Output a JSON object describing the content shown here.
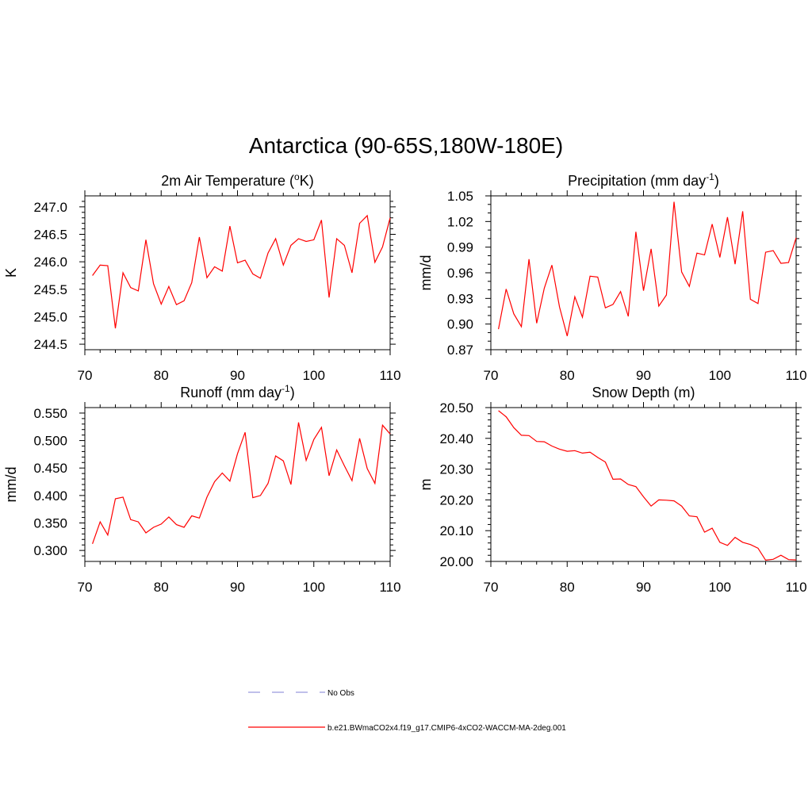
{
  "main_title": "Antarctica (90-65S,180W-180E)",
  "colors": {
    "series": "#ff0000",
    "obs": "#9999dd",
    "axis": "#000000"
  },
  "legend": [
    {
      "label": "No Obs",
      "style": "dashed"
    },
    {
      "label": "b.e21.BWmaCO2x4.f19_g17.CMIP6-4xCO2-WACCM-MA-2deg.001",
      "style": "solid"
    }
  ],
  "chart_data": [
    {
      "type": "line",
      "title_main": "2m Air Temperature (",
      "title_sup": "o",
      "title_end": "K)",
      "ylabel": "K",
      "xlim": [
        70,
        110
      ],
      "ylim": [
        244.4,
        247.2
      ],
      "xticks": [
        70,
        80,
        90,
        100,
        110
      ],
      "xtick_labels": [
        "70",
        "80",
        "90",
        "100",
        "110"
      ],
      "yticks": [
        244.5,
        245.0,
        245.5,
        246.0,
        246.5,
        247.0
      ],
      "ytick_labels": [
        "244.5",
        "245.0",
        "245.5",
        "246.0",
        "246.5",
        "247.0"
      ],
      "yminor": [
        244.6,
        244.7,
        244.8,
        244.9,
        245.1,
        245.2,
        245.3,
        245.4,
        245.6,
        245.7,
        245.8,
        245.9,
        246.1,
        246.2,
        246.3,
        246.4,
        246.6,
        246.7,
        246.8,
        246.9,
        247.1
      ],
      "x": [
        71,
        72,
        73,
        74,
        75,
        76,
        77,
        78,
        79,
        80,
        81,
        82,
        83,
        84,
        85,
        86,
        87,
        88,
        89,
        90,
        91,
        92,
        93,
        94,
        95,
        96,
        97,
        98,
        99,
        100,
        101,
        102,
        103,
        104,
        105,
        106,
        107,
        108,
        109,
        110
      ],
      "values": [
        245.75,
        245.94,
        245.93,
        244.79,
        245.8,
        245.53,
        245.47,
        246.4,
        245.6,
        245.23,
        245.55,
        245.22,
        245.29,
        245.62,
        246.45,
        245.71,
        245.91,
        245.83,
        246.65,
        245.98,
        246.03,
        245.78,
        245.7,
        246.16,
        246.42,
        245.94,
        246.3,
        246.42,
        246.37,
        246.4,
        246.76,
        245.35,
        246.42,
        246.3,
        245.8,
        246.7,
        246.84,
        245.99,
        246.27,
        246.8
      ]
    },
    {
      "type": "line",
      "title_main": "Precipitation (mm day",
      "title_sup": "-1",
      "title_end": ")",
      "ylabel": "mm/d",
      "xlim": [
        70,
        110
      ],
      "ylim": [
        0.87,
        1.05
      ],
      "xticks": [
        70,
        80,
        90,
        100,
        110
      ],
      "xtick_labels": [
        "70",
        "80",
        "90",
        "100",
        "110"
      ],
      "yticks": [
        0.87,
        0.9,
        0.93,
        0.96,
        0.99,
        1.02,
        1.05
      ],
      "ytick_labels": [
        "0.87",
        "0.90",
        "0.93",
        "0.96",
        "0.99",
        "1.02",
        "1.05"
      ],
      "yminor": [
        0.88,
        0.89,
        0.91,
        0.92,
        0.94,
        0.95,
        0.97,
        0.98,
        1.0,
        1.01,
        1.03,
        1.04
      ],
      "x": [
        71,
        72,
        73,
        74,
        75,
        76,
        77,
        78,
        79,
        80,
        81,
        82,
        83,
        84,
        85,
        86,
        87,
        88,
        89,
        90,
        91,
        92,
        93,
        94,
        95,
        96,
        97,
        98,
        99,
        100,
        101,
        102,
        103,
        104,
        105,
        106,
        107,
        108,
        109,
        110
      ],
      "values": [
        0.894,
        0.941,
        0.912,
        0.897,
        0.976,
        0.901,
        0.942,
        0.969,
        0.92,
        0.886,
        0.932,
        0.908,
        0.956,
        0.955,
        0.919,
        0.923,
        0.938,
        0.909,
        1.008,
        0.939,
        0.988,
        0.921,
        0.934,
        1.043,
        0.961,
        0.944,
        0.983,
        0.981,
        1.017,
        0.978,
        1.025,
        0.97,
        1.032,
        0.929,
        0.924,
        0.984,
        0.986,
        0.971,
        0.972,
        1.001
      ]
    },
    {
      "type": "line",
      "title_main": "Runoff (mm day",
      "title_sup": "-1",
      "title_end": ")",
      "ylabel": "mm/d",
      "xlim": [
        70,
        110
      ],
      "ylim": [
        0.28,
        0.56
      ],
      "xticks": [
        70,
        80,
        90,
        100,
        110
      ],
      "xtick_labels": [
        "70",
        "80",
        "90",
        "100",
        "110"
      ],
      "yticks": [
        0.3,
        0.35,
        0.4,
        0.45,
        0.5,
        0.55
      ],
      "ytick_labels": [
        "0.300",
        "0.350",
        "0.400",
        "0.450",
        "0.500",
        "0.550"
      ],
      "yminor": [
        0.29,
        0.31,
        0.32,
        0.33,
        0.34,
        0.36,
        0.37,
        0.38,
        0.39,
        0.41,
        0.42,
        0.43,
        0.44,
        0.46,
        0.47,
        0.48,
        0.49,
        0.51,
        0.52,
        0.53,
        0.54
      ],
      "x": [
        71,
        72,
        73,
        74,
        75,
        76,
        77,
        78,
        79,
        80,
        81,
        82,
        83,
        84,
        85,
        86,
        87,
        88,
        89,
        90,
        91,
        92,
        93,
        94,
        95,
        96,
        97,
        98,
        99,
        100,
        101,
        102,
        103,
        104,
        105,
        106,
        107,
        108,
        109,
        110
      ],
      "values": [
        0.312,
        0.352,
        0.328,
        0.394,
        0.397,
        0.356,
        0.352,
        0.332,
        0.342,
        0.348,
        0.361,
        0.347,
        0.342,
        0.363,
        0.359,
        0.397,
        0.425,
        0.441,
        0.426,
        0.476,
        0.515,
        0.396,
        0.4,
        0.422,
        0.472,
        0.463,
        0.42,
        0.533,
        0.464,
        0.502,
        0.524,
        0.436,
        0.483,
        0.454,
        0.427,
        0.504,
        0.449,
        0.422,
        0.528,
        0.512
      ]
    },
    {
      "type": "line",
      "title_main": "Snow Depth (m)",
      "title_sup": "",
      "title_end": "",
      "ylabel": "m",
      "xlim": [
        70,
        110
      ],
      "ylim": [
        20.0,
        20.5
      ],
      "xticks": [
        70,
        80,
        90,
        100,
        110
      ],
      "xtick_labels": [
        "70",
        "80",
        "90",
        "100",
        "110"
      ],
      "yticks": [
        20.0,
        20.1,
        20.2,
        20.3,
        20.4,
        20.5
      ],
      "ytick_labels": [
        "20.00",
        "20.10",
        "20.20",
        "20.30",
        "20.40",
        "20.50"
      ],
      "yminor": [
        20.02,
        20.04,
        20.06,
        20.08,
        20.12,
        20.14,
        20.16,
        20.18,
        20.22,
        20.24,
        20.26,
        20.28,
        20.32,
        20.34,
        20.36,
        20.38,
        20.42,
        20.44,
        20.46,
        20.48
      ],
      "x": [
        71,
        72,
        73,
        74,
        75,
        76,
        77,
        78,
        79,
        80,
        81,
        82,
        83,
        84,
        85,
        86,
        87,
        88,
        89,
        90,
        91,
        92,
        93,
        94,
        95,
        96,
        97,
        98,
        99,
        100,
        101,
        102,
        103,
        104,
        105,
        106,
        107,
        108,
        109,
        110
      ],
      "values": [
        20.49,
        20.47,
        20.435,
        20.41,
        20.409,
        20.39,
        20.389,
        20.375,
        20.365,
        20.358,
        20.36,
        20.352,
        20.355,
        20.338,
        20.323,
        20.267,
        20.268,
        20.25,
        20.243,
        20.21,
        20.18,
        20.2,
        20.199,
        20.197,
        20.18,
        20.148,
        20.145,
        20.095,
        20.108,
        20.062,
        20.052,
        20.078,
        20.062,
        20.055,
        20.043,
        20.004,
        20.007,
        20.02,
        20.006,
        20.005
      ]
    }
  ]
}
